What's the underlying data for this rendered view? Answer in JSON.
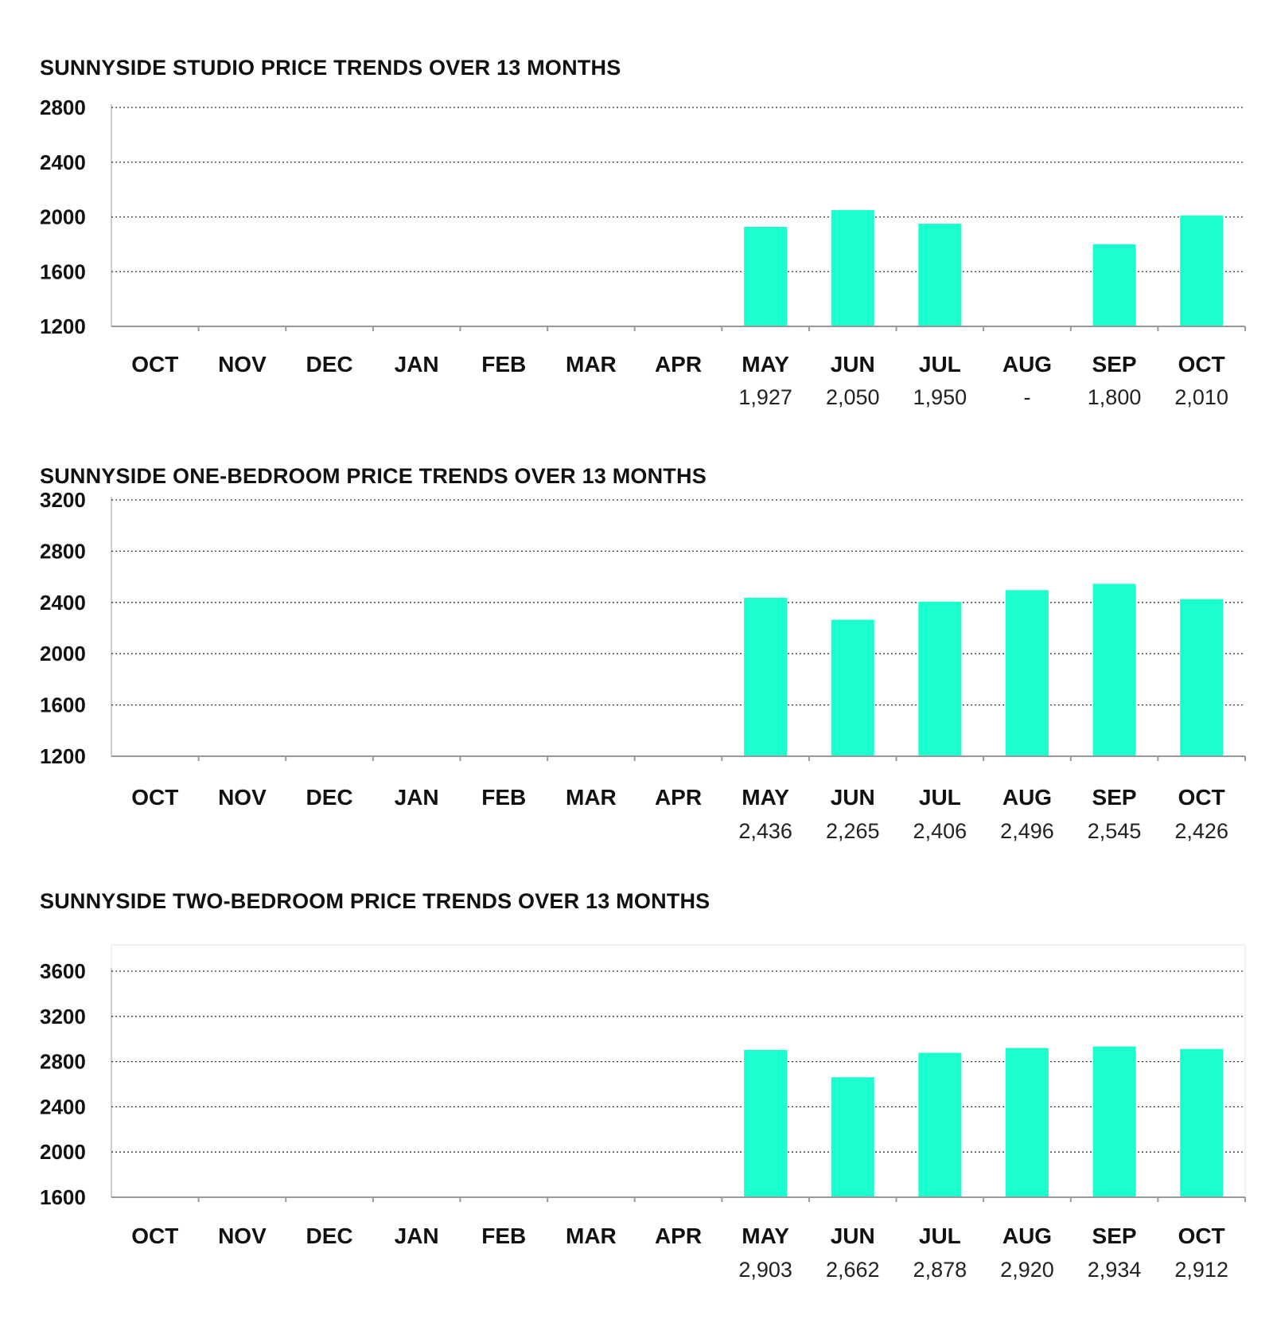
{
  "colors": {
    "bar": "#1bffce",
    "grid": "#333333"
  },
  "chart_data": [
    {
      "type": "bar",
      "title": "SUNNYSIDE STUDIO PRICE TRENDS OVER 13 MONTHS",
      "categories": [
        "OCT",
        "NOV",
        "DEC",
        "JAN",
        "FEB",
        "MAR",
        "APR",
        "MAY",
        "JUN",
        "JUL",
        "AUG",
        "SEP",
        "OCT"
      ],
      "values": [
        null,
        null,
        null,
        null,
        null,
        null,
        null,
        1927,
        2050,
        1950,
        null,
        1800,
        2010
      ],
      "data_labels": [
        "",
        "",
        "",
        "",
        "",
        "",
        "",
        "1,927",
        "2,050",
        "1,950",
        "-",
        "1,800",
        "2,010"
      ],
      "yticks": [
        "1200",
        "1600",
        "2000",
        "2400",
        "2800"
      ],
      "ylim": [
        1200,
        2800
      ],
      "grid": true
    },
    {
      "type": "bar",
      "title": "SUNNYSIDE ONE-BEDROOM PRICE TRENDS OVER 13 MONTHS",
      "categories": [
        "OCT",
        "NOV",
        "DEC",
        "JAN",
        "FEB",
        "MAR",
        "APR",
        "MAY",
        "JUN",
        "JUL",
        "AUG",
        "SEP",
        "OCT"
      ],
      "values": [
        null,
        null,
        null,
        null,
        null,
        null,
        null,
        2436,
        2265,
        2406,
        2496,
        2545,
        2426
      ],
      "data_labels": [
        "",
        "",
        "",
        "",
        "",
        "",
        "",
        "2,436",
        "2,265",
        "2,406",
        "2,496",
        "2,545",
        "2,426"
      ],
      "yticks": [
        "1200",
        "1600",
        "2000",
        "2400",
        "2800",
        "3200"
      ],
      "ylim": [
        1200,
        3200
      ],
      "grid": true
    },
    {
      "type": "bar",
      "title": "SUNNYSIDE TWO-BEDROOM PRICE TRENDS OVER 13 MONTHS",
      "categories": [
        "OCT",
        "NOV",
        "DEC",
        "JAN",
        "FEB",
        "MAR",
        "APR",
        "MAY",
        "JUN",
        "JUL",
        "AUG",
        "SEP",
        "OCT"
      ],
      "values": [
        null,
        null,
        null,
        null,
        null,
        null,
        null,
        2903,
        2662,
        2878,
        2920,
        2934,
        2912
      ],
      "data_labels": [
        "",
        "",
        "",
        "",
        "",
        "",
        "",
        "2,903",
        "2,662",
        "2,878",
        "2,920",
        "2,934",
        "2,912"
      ],
      "yticks": [
        "1600",
        "2000",
        "2400",
        "2800",
        "3200",
        "3600"
      ],
      "ylim": [
        1600,
        3600
      ],
      "grid": true
    }
  ]
}
